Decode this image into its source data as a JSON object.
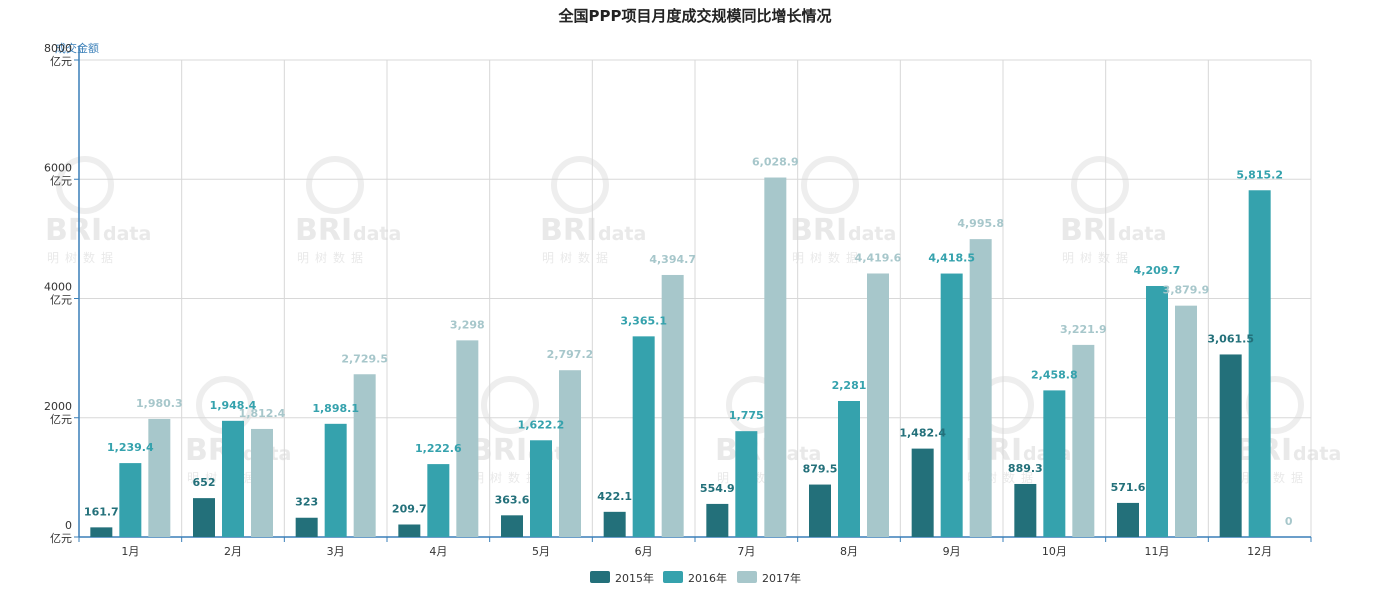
{
  "chart_data": {
    "type": "bar",
    "title": "全国PPP项目月度成交规模同比增长情况",
    "ylabel": "成交金额",
    "ylim": [
      0,
      8000
    ],
    "yticks": [
      0,
      2000,
      4000,
      6000,
      8000
    ],
    "ytick_unit": "亿元",
    "categories": [
      "1月",
      "2月",
      "3月",
      "4月",
      "5月",
      "6月",
      "7月",
      "8月",
      "9月",
      "10月",
      "11月",
      "12月"
    ],
    "series": [
      {
        "name": "2015年",
        "color": "#23707a",
        "values": [
          161.7,
          652,
          323,
          209.7,
          363.6,
          422.1,
          554.9,
          879.5,
          1482.4,
          889.3,
          571.6,
          3061.5
        ],
        "labels": [
          "161.7",
          "652",
          "323",
          "209.7",
          "363.6",
          "422.1",
          "554.9",
          "879.5",
          "1,482.4",
          "889.3",
          "571.6",
          "3,061.5"
        ]
      },
      {
        "name": "2016年",
        "color": "#35a2ad",
        "values": [
          1239.4,
          1948.4,
          1898.1,
          1222.6,
          1622.2,
          3365.1,
          1775,
          2281,
          4418.5,
          2458.8,
          4209.7,
          5815.2
        ],
        "labels": [
          "1,239.4",
          "1,948.4",
          "1,898.1",
          "1,222.6",
          "1,622.2",
          "3,365.1",
          "1,775",
          "2,281",
          "4,418.5",
          "2,458.8",
          "4,209.7",
          "5,815.2"
        ]
      },
      {
        "name": "2017年",
        "color": "#a7c7cb",
        "values": [
          1980.3,
          1812.4,
          2729.5,
          3298,
          2797.2,
          4394.7,
          6028.9,
          4419.6,
          4995.8,
          3221.9,
          3879.9,
          0
        ],
        "labels": [
          "1,980.3",
          "1,812.4",
          "2,729.5",
          "3,298",
          "2,797.2",
          "4,394.7",
          "6,028.9",
          "4,419.6",
          "4,995.8",
          "3,221.9",
          "3,879.9",
          "0"
        ]
      }
    ],
    "grid": true,
    "legend": "bottom-center"
  },
  "watermark": {
    "brand": "BRI",
    "suffix": "data",
    "cn": "明树数据"
  }
}
